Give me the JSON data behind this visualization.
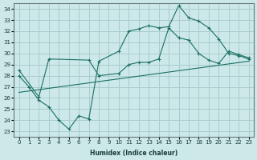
{
  "xlabel": "Humidex (Indice chaleur)",
  "background_color": "#cce8e8",
  "grid_color": "#aacccc",
  "line_color": "#1a7060",
  "xlim": [
    -0.5,
    23.5
  ],
  "ylim": [
    22.5,
    34.5
  ],
  "xticks": [
    0,
    1,
    2,
    3,
    4,
    5,
    6,
    7,
    8,
    9,
    10,
    11,
    12,
    13,
    14,
    15,
    16,
    17,
    18,
    19,
    20,
    21,
    22,
    23
  ],
  "yticks": [
    23,
    24,
    25,
    26,
    27,
    28,
    29,
    30,
    31,
    32,
    33,
    34
  ],
  "line1_x": [
    0,
    1,
    2,
    3,
    4,
    5,
    6,
    7,
    8,
    10,
    11,
    12,
    13,
    14,
    15,
    16,
    17,
    18,
    19,
    20,
    21,
    22,
    23
  ],
  "line1_y": [
    28.0,
    27.0,
    25.8,
    25.2,
    24.0,
    23.2,
    24.4,
    24.1,
    29.3,
    30.2,
    32.0,
    32.2,
    32.5,
    32.3,
    32.4,
    34.3,
    33.2,
    32.9,
    32.3,
    31.3,
    30.0,
    29.8,
    29.5
  ],
  "line2_x": [
    0,
    2,
    3,
    7,
    8,
    10,
    11,
    12,
    13,
    14,
    15,
    16,
    17,
    18,
    19,
    20,
    21,
    22,
    23
  ],
  "line2_y": [
    28.5,
    26.1,
    29.5,
    29.4,
    28.0,
    28.2,
    29.0,
    29.2,
    29.2,
    29.5,
    32.3,
    31.4,
    31.2,
    30.0,
    29.4,
    29.1,
    30.2,
    29.9,
    29.6
  ],
  "line3_x": [
    0,
    23
  ],
  "line3_y": [
    26.5,
    29.3
  ]
}
